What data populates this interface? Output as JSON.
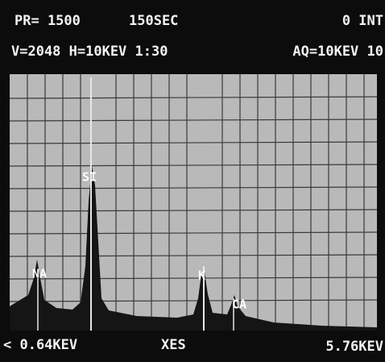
{
  "header": {
    "line1": [
      "PR= 1500",
      "150SEC",
      "0 INT"
    ],
    "line2": [
      "V=2048 H=10KEV 1:30",
      "AQ=10KEV 10"
    ]
  },
  "peaks": [
    {
      "label": "NA"
    },
    {
      "label": "SI"
    },
    {
      "label": "K"
    },
    {
      "label": "CA"
    }
  ],
  "footer": {
    "cursor": "< 0.64KEV",
    "mode": "XES",
    "range": "5.76KEV"
  }
}
